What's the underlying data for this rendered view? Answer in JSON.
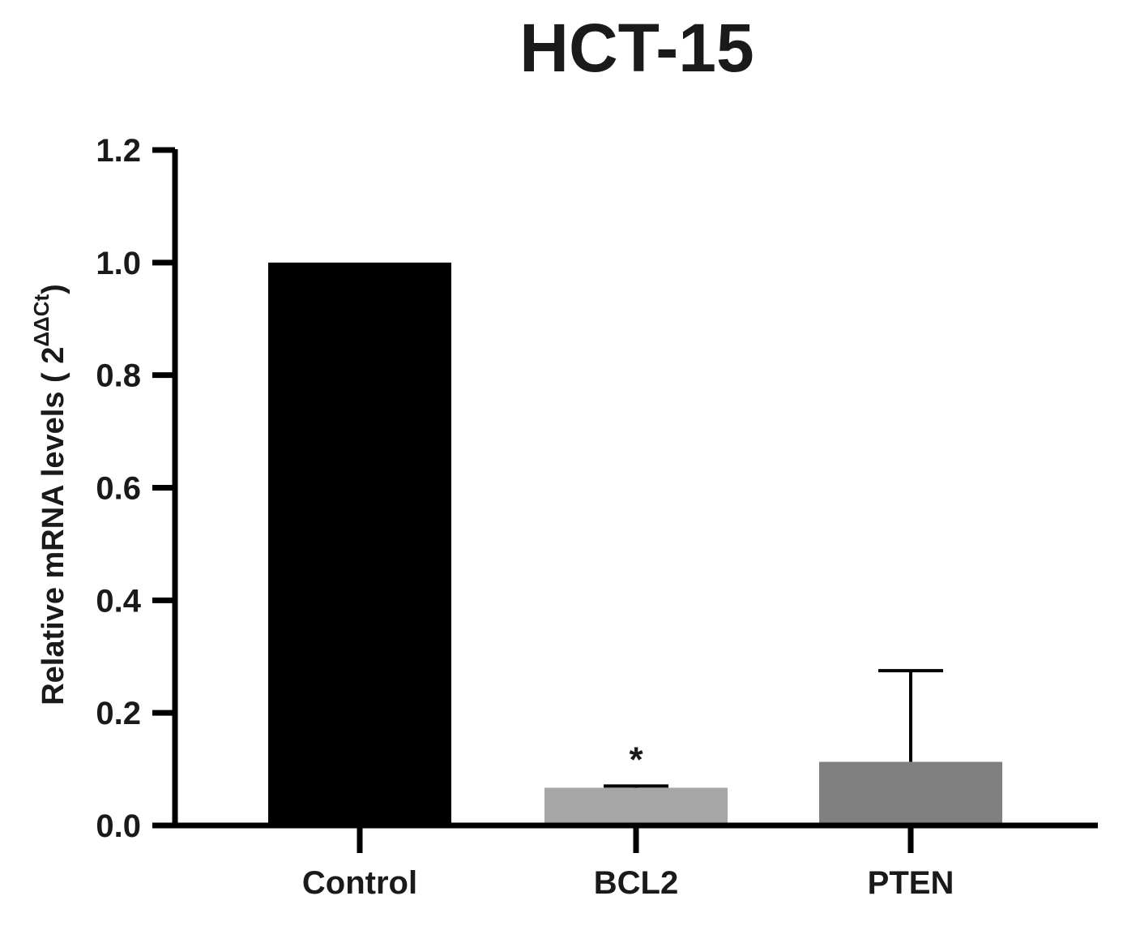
{
  "chart_data": {
    "type": "bar",
    "title": "HCT-15",
    "ylabel": "Relative mRNA levels ( 2",
    "ylabel_superscript": "ΔΔCt",
    "ylabel_close": ")",
    "xlabel": "",
    "categories": [
      "Control",
      "BCL2",
      "PTEN"
    ],
    "values": [
      1.0,
      0.067,
      0.113
    ],
    "error_upper": [
      0.0,
      0.003,
      0.162
    ],
    "annotations": [
      "",
      "*",
      ""
    ],
    "bar_colors": [
      "#000000",
      "#a6a6a6",
      "#808080"
    ],
    "ylim": [
      0,
      1.2
    ],
    "yticks": [
      "0.0",
      "0.2",
      "0.4",
      "0.6",
      "0.8",
      "1.0",
      "1.2"
    ],
    "grid": false,
    "legend": "none"
  }
}
